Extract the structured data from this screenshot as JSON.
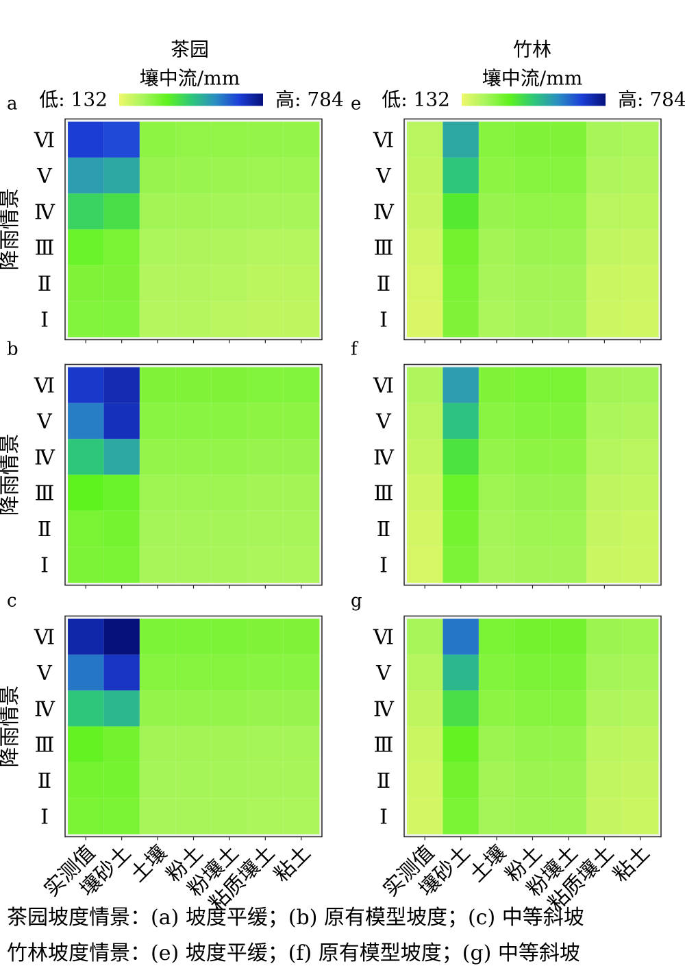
{
  "columns": [
    {
      "title": "茶园",
      "colorbar": {
        "label": "壤中流/mm",
        "low_label": "低: 132",
        "high_label": "高: 784"
      }
    },
    {
      "title": "竹林",
      "colorbar": {
        "label": "壤中流/mm",
        "low_label": "低: 132",
        "high_label": "高: 784"
      }
    }
  ],
  "colorscale": {
    "min": 132,
    "max": 784,
    "stops": [
      "#eef76a",
      "#a8f55a",
      "#5ef21e",
      "#2ec879",
      "#2a8fc0",
      "#1c3fd8",
      "#06107a"
    ]
  },
  "chart_data": [
    {
      "panel": "a",
      "type": "heatmap",
      "x_categories": [
        "实测值",
        "壤砂土",
        "土壤",
        "粉土",
        "粉壤土",
        "粘质壤土",
        "粘土"
      ],
      "y_categories": [
        "Ⅰ",
        "Ⅱ",
        "Ⅲ",
        "Ⅳ",
        "Ⅴ",
        "Ⅵ"
      ],
      "ylabel": "降雨情景",
      "values_top_to_bottom": [
        [
          680,
          660,
          280,
          275,
          275,
          270,
          270
        ],
        [
          540,
          520,
          265,
          262,
          260,
          255,
          255
        ],
        [
          430,
          400,
          250,
          248,
          245,
          240,
          240
        ],
        [
          330,
          310,
          235,
          232,
          228,
          220,
          220
        ],
        [
          300,
          300,
          225,
          225,
          220,
          210,
          210
        ],
        [
          295,
          295,
          220,
          220,
          215,
          205,
          205
        ]
      ]
    },
    {
      "panel": "b",
      "type": "heatmap",
      "x_categories": [
        "实测值",
        "壤砂土",
        "土壤",
        "粉土",
        "粉壤土",
        "粘质壤土",
        "粘土"
      ],
      "y_categories": [
        "Ⅰ",
        "Ⅱ",
        "Ⅲ",
        "Ⅳ",
        "Ⅴ",
        "Ⅵ"
      ],
      "ylabel": "降雨情景",
      "values_top_to_bottom": [
        [
          690,
          720,
          300,
          300,
          300,
          295,
          295
        ],
        [
          590,
          710,
          285,
          285,
          285,
          280,
          280
        ],
        [
          460,
          520,
          270,
          270,
          270,
          265,
          265
        ],
        [
          350,
          330,
          255,
          255,
          255,
          250,
          250
        ],
        [
          310,
          315,
          245,
          245,
          245,
          240,
          240
        ],
        [
          305,
          310,
          240,
          240,
          240,
          235,
          235
        ]
      ]
    },
    {
      "panel": "c",
      "type": "heatmap",
      "x_categories": [
        "实测值",
        "壤砂土",
        "土壤",
        "粉土",
        "粉壤土",
        "粘质壤土",
        "粘土"
      ],
      "y_categories": [
        "Ⅰ",
        "Ⅱ",
        "Ⅲ",
        "Ⅳ",
        "Ⅴ",
        "Ⅵ"
      ],
      "ylabel": "降雨情景",
      "values_top_to_bottom": [
        [
          730,
          784,
          305,
          305,
          305,
          300,
          300
        ],
        [
          600,
          700,
          290,
          290,
          290,
          285,
          285
        ],
        [
          460,
          490,
          270,
          270,
          270,
          265,
          265
        ],
        [
          340,
          320,
          250,
          250,
          250,
          245,
          245
        ],
        [
          315,
          315,
          245,
          245,
          245,
          240,
          240
        ],
        [
          310,
          310,
          240,
          240,
          240,
          235,
          235
        ]
      ]
    },
    {
      "panel": "e",
      "type": "heatmap",
      "x_categories": [
        "实测值",
        "壤砂土",
        "土壤",
        "粉土",
        "粉壤土",
        "粘质壤土",
        "粘土"
      ],
      "y_categories": [
        "Ⅰ",
        "Ⅱ",
        "Ⅲ",
        "Ⅳ",
        "Ⅴ",
        "Ⅵ"
      ],
      "ylabel": "",
      "values_top_to_bottom": [
        [
          215,
          520,
          290,
          300,
          300,
          240,
          235
        ],
        [
          205,
          460,
          280,
          290,
          290,
          230,
          225
        ],
        [
          195,
          370,
          265,
          275,
          275,
          215,
          210
        ],
        [
          180,
          320,
          250,
          260,
          260,
          200,
          195
        ],
        [
          170,
          310,
          240,
          250,
          250,
          190,
          185
        ],
        [
          165,
          300,
          235,
          245,
          245,
          185,
          180
        ]
      ]
    },
    {
      "panel": "f",
      "type": "heatmap",
      "x_categories": [
        "实测值",
        "壤砂土",
        "土壤",
        "粉土",
        "粉壤土",
        "粘质壤土",
        "粘土"
      ],
      "y_categories": [
        "Ⅰ",
        "Ⅱ",
        "Ⅲ",
        "Ⅳ",
        "Ⅴ",
        "Ⅵ"
      ],
      "ylabel": "",
      "values_top_to_bottom": [
        [
          230,
          540,
          300,
          310,
          310,
          250,
          245
        ],
        [
          215,
          470,
          285,
          295,
          295,
          235,
          230
        ],
        [
          200,
          390,
          270,
          280,
          280,
          220,
          215
        ],
        [
          185,
          330,
          255,
          265,
          265,
          205,
          200
        ],
        [
          175,
          315,
          245,
          255,
          255,
          195,
          190
        ],
        [
          170,
          305,
          240,
          250,
          250,
          190,
          185
        ]
      ]
    },
    {
      "panel": "g",
      "type": "heatmap",
      "x_categories": [
        "实测值",
        "壤砂土",
        "土壤",
        "粉土",
        "粉壤土",
        "粘质壤土",
        "粘土"
      ],
      "y_categories": [
        "Ⅰ",
        "Ⅱ",
        "Ⅲ",
        "Ⅳ",
        "Ⅴ",
        "Ⅵ"
      ],
      "ylabel": "",
      "values_top_to_bottom": [
        [
          240,
          600,
          310,
          320,
          320,
          260,
          255
        ],
        [
          220,
          490,
          295,
          305,
          305,
          245,
          240
        ],
        [
          205,
          400,
          280,
          290,
          290,
          230,
          225
        ],
        [
          190,
          340,
          260,
          270,
          270,
          210,
          205
        ],
        [
          180,
          320,
          250,
          260,
          260,
          200,
          195
        ],
        [
          175,
          310,
          245,
          255,
          255,
          195,
          190
        ]
      ]
    }
  ],
  "captions": [
    "茶园坡度情景：(a) 坡度平缓；(b) 原有模型坡度；(c) 中等斜坡",
    "竹林坡度情景：(e) 坡度平缓；(f)  原有模型坡度；(g) 中等斜坡"
  ]
}
